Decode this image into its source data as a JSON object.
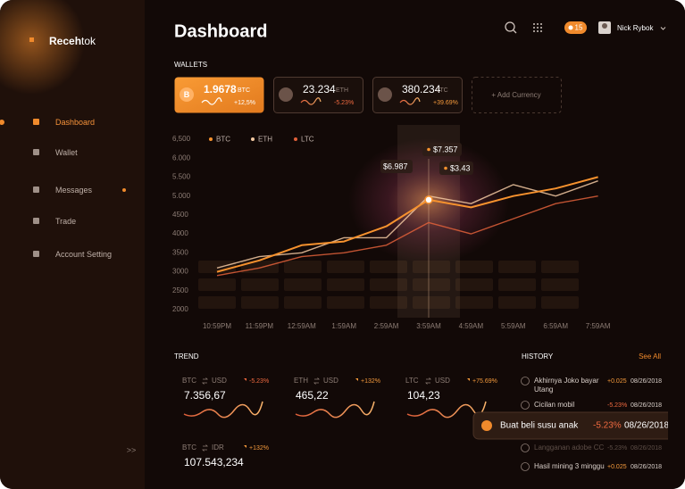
{
  "brand": {
    "name_a": "Receh",
    "name_b": "tok"
  },
  "sidebar": {
    "menu": [
      "Dashboard",
      "Wallet",
      "Messages",
      "Trade",
      "Account Setting"
    ],
    "collapse": ">>"
  },
  "header": {
    "title": "Dashboard",
    "notifications": 15,
    "user": "Nick Rybok"
  },
  "wallets": {
    "label": "WALLETS",
    "cards": [
      {
        "icon": "B",
        "amount": "1.9678",
        "currency": "BTC",
        "change": "+12,5%"
      },
      {
        "amount": "23.234",
        "currency": "ETH",
        "change": "-5.23%"
      },
      {
        "amount": "380.234",
        "currency": "LTC",
        "change": "+39.69%"
      }
    ],
    "add": "+ Add Currency"
  },
  "chart_data": {
    "type": "line",
    "categories": [
      "10:59PM",
      "11:59PM",
      "12:59AM",
      "1:59AM",
      "2:59AM",
      "3:59AM",
      "4:59AM",
      "5:59AM",
      "6:59AM",
      "7:59AM"
    ],
    "series": [
      {
        "name": "BTC",
        "color": "#f7922e",
        "values": [
          3000,
          3300,
          3700,
          3800,
          4200,
          4900,
          4700,
          5000,
          5200,
          5500
        ]
      },
      {
        "name": "ETH",
        "color": "#f3c9a2",
        "values": [
          3100,
          3400,
          3500,
          3900,
          3900,
          5000,
          4800,
          5300,
          5000,
          5400
        ]
      },
      {
        "name": "LTC",
        "color": "#e0603a",
        "values": [
          2900,
          3100,
          3400,
          3500,
          3700,
          4300,
          4000,
          4400,
          4800,
          5000
        ]
      }
    ],
    "ylim": [
      2000,
      6500
    ],
    "yticks": [
      2000,
      2500,
      3000,
      3500,
      4000,
      4500,
      {
        "value": 5000,
        "label": "5.000"
      },
      {
        "value": 5500,
        "label": "5.500"
      },
      {
        "value": 6000,
        "label": "6.000"
      },
      {
        "value": 6500,
        "label": "6,500"
      }
    ],
    "grid": false,
    "legend": "top-left",
    "annotations": [
      "$6.987",
      "$7.357",
      "$3.43"
    ]
  },
  "trend": {
    "label": "TREND",
    "pairs": [
      {
        "base": "BTC",
        "quote": "USD",
        "change": "-5.23%",
        "price": "7.356,67"
      },
      {
        "base": "ETH",
        "quote": "USD",
        "change": "+132%",
        "price": "465,22"
      },
      {
        "base": "LTC",
        "quote": "USD",
        "change": "+75.69%",
        "price": "104,23"
      },
      {
        "base": "BTC",
        "quote": "IDR",
        "change": "+132%",
        "price": "107.543,234"
      }
    ]
  },
  "history": {
    "label": "HISTORY",
    "see_all": "See All",
    "items": [
      {
        "title": "Akhirnya Joko bayar",
        "title2": "Utang",
        "change": "+0.025",
        "date": "08/26/2018"
      },
      {
        "title": "Cicilan mobil",
        "change": "-5.23%",
        "date": "08/26/2018"
      },
      {
        "title": "Buat beli susu anak",
        "change": "-5.23%",
        "date": "08/26/2018"
      },
      {
        "title": "Langganan adobe CC",
        "change": "-5.23%",
        "date": "08/26/2018"
      },
      {
        "title": "Hasil mining 3 minggu",
        "change": "+0.025",
        "date": "08/26/2018"
      }
    ]
  }
}
